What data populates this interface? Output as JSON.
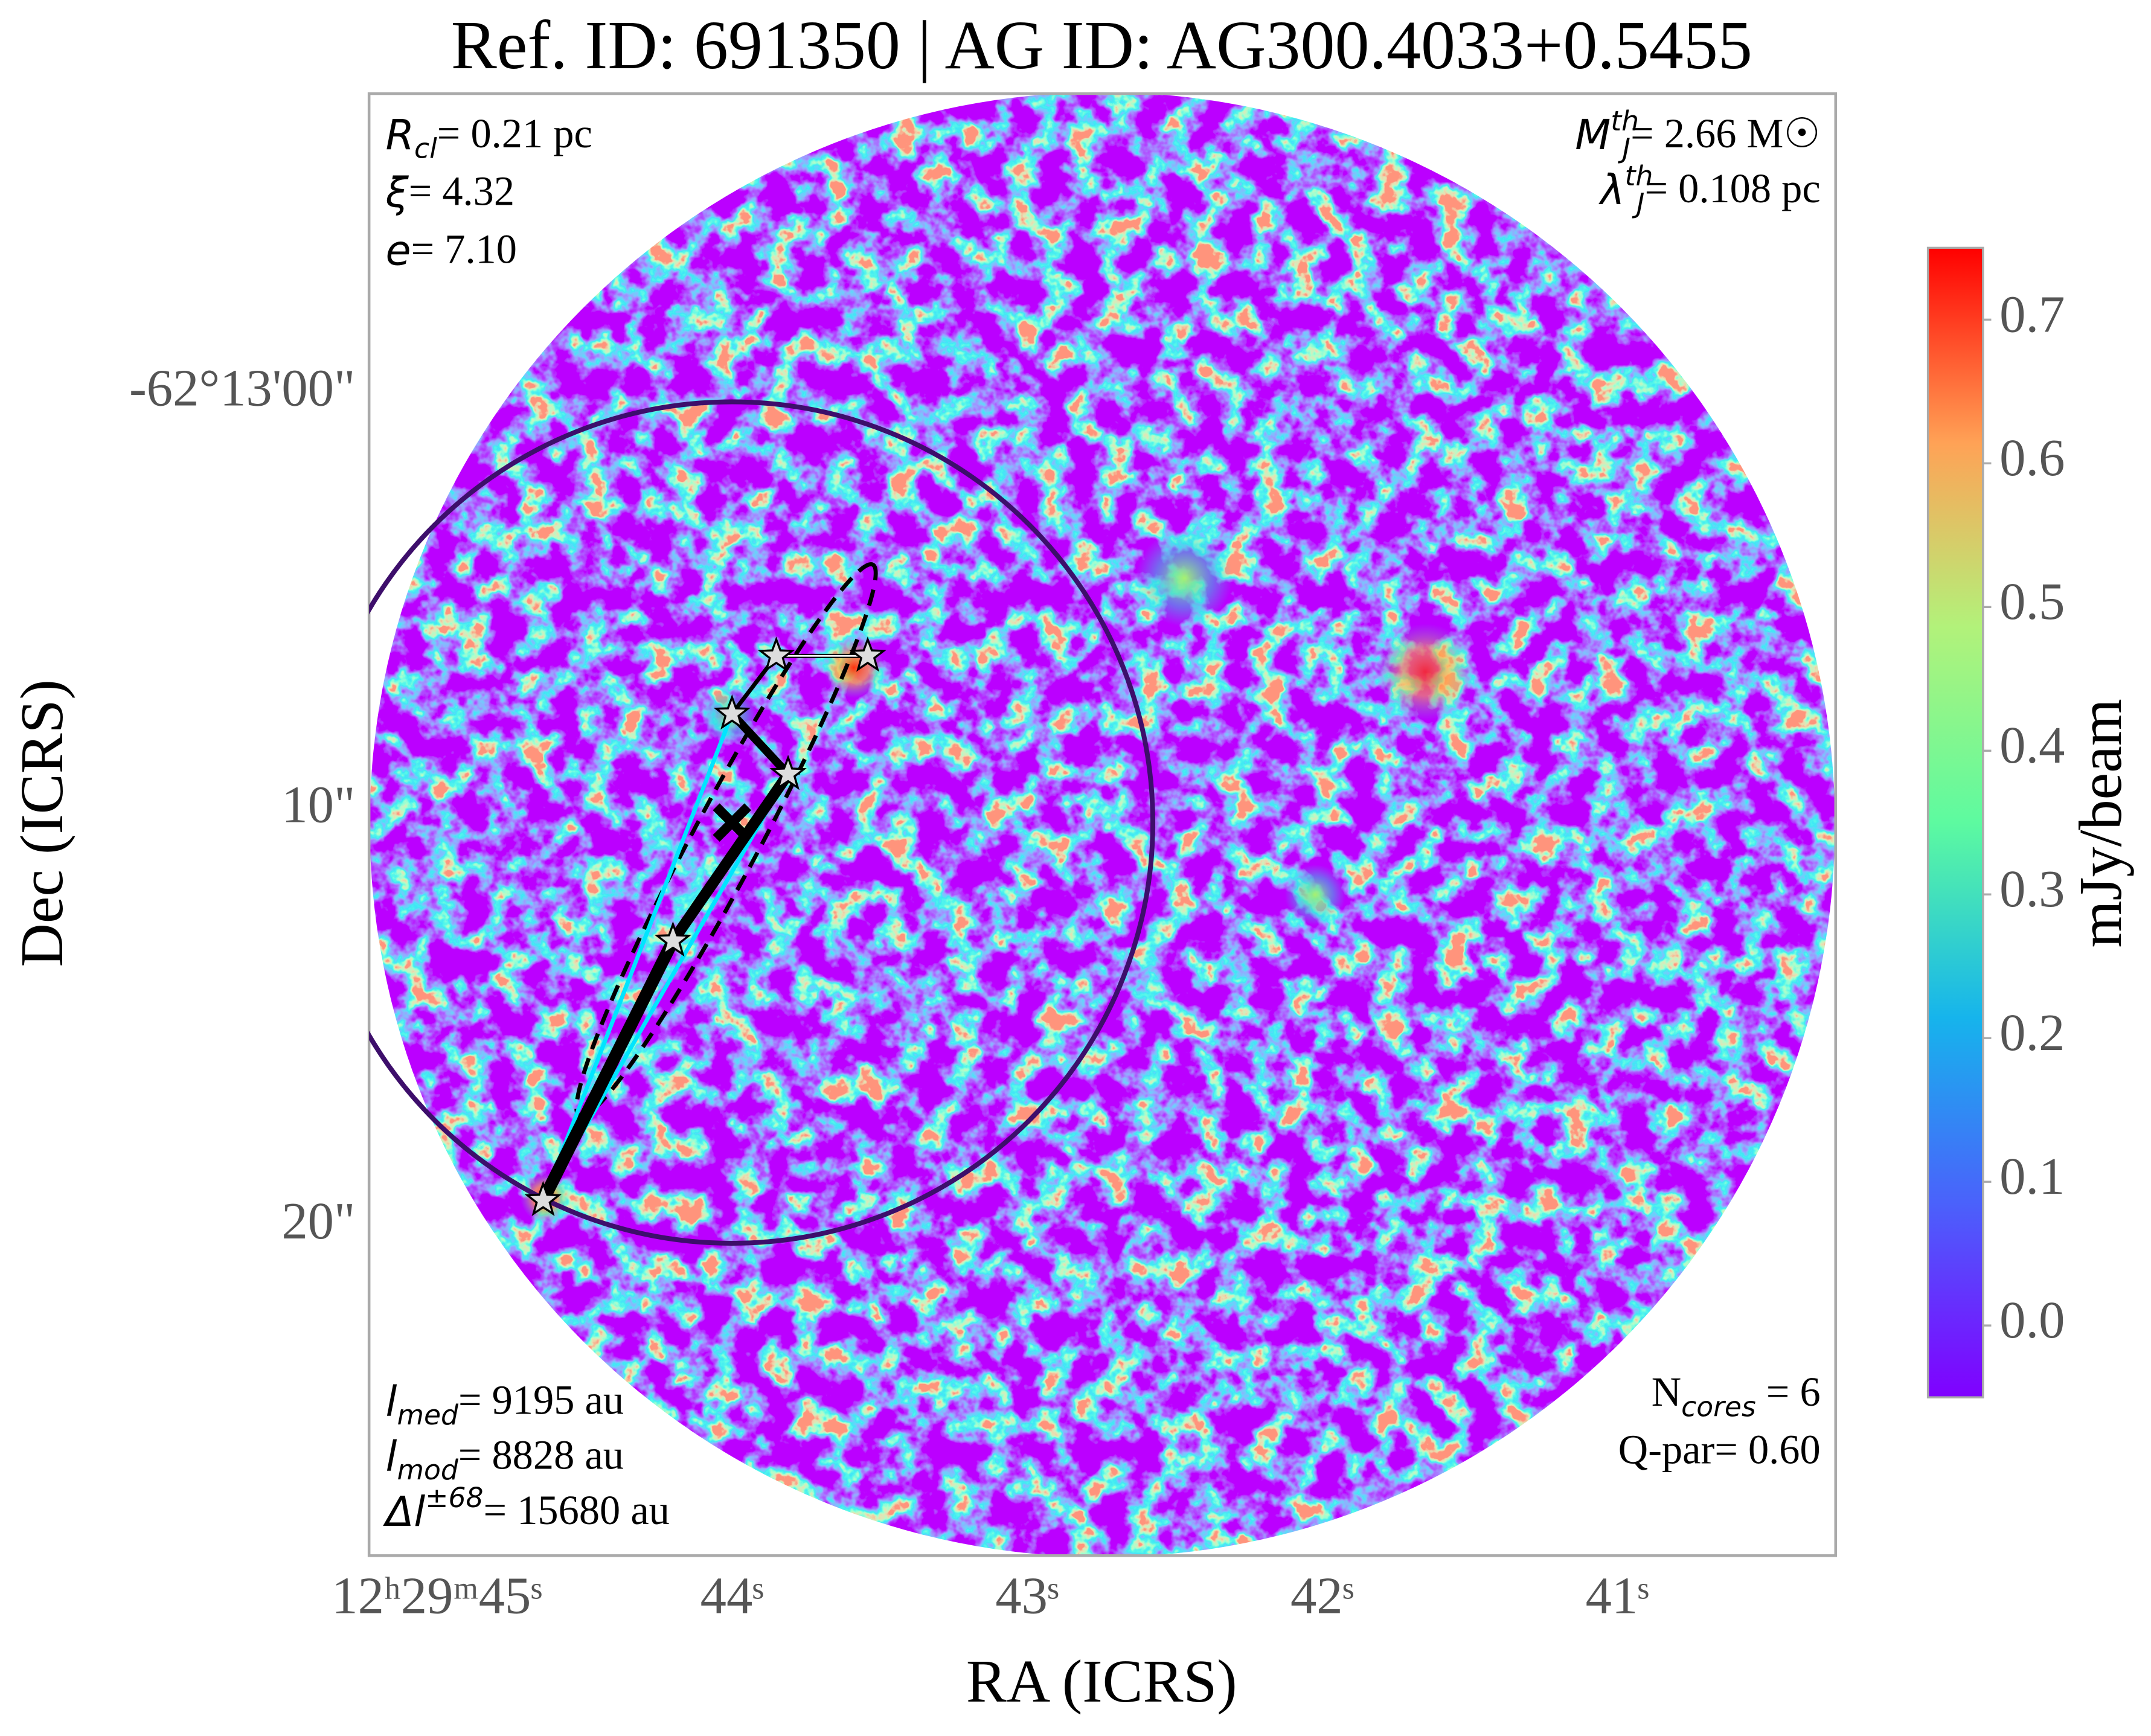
{
  "chart_data": {
    "type": "sky-map",
    "title": "Ref. ID: 691350 | AG ID: AG300.4033+0.5455",
    "x_label": "RA (ICRS)",
    "y_label": "Dec (ICRS)",
    "xlim": [
      45.23,
      40.26
    ],
    "ylim": [
      -7.2,
      27.9
    ],
    "xticks": [
      {
        "value": 45,
        "label": "12ʰ29ᵐ45ˢ"
      },
      {
        "value": 44,
        "label": "44ˢ"
      },
      {
        "value": 43,
        "label": "43ˢ"
      },
      {
        "value": 42,
        "label": "42ˢ"
      },
      {
        "value": 41,
        "label": "41ˢ"
      }
    ],
    "yticks": [
      {
        "value": 0,
        "label": "-62°13'00\""
      },
      {
        "value": 10,
        "label": "10\""
      },
      {
        "value": 20,
        "label": "20\""
      }
    ],
    "colorbar": {
      "label": "mJy/beam",
      "clim": [
        -0.05,
        0.75
      ],
      "ticks": [
        {
          "value": 0,
          "label": "0.0"
        },
        0.1,
        0.2,
        0.3,
        0.4,
        0.5,
        0.6,
        0.7
      ]
    },
    "clump_circle": {
      "ra": 44.0,
      "dec": 10.3,
      "radius": 10.1,
      "color": "#3d0e6b"
    },
    "ellipse": {
      "ra": 44.02,
      "dec": 10.73,
      "semi_axes": [
        7.5,
        0.8
      ],
      "angle": 62
    },
    "cores": {
      "ra": [
        44.64,
        44.2,
        43.81,
        44.0,
        43.85,
        43.54
      ],
      "dec": [
        19.37,
        13.14,
        9.14,
        7.69,
        6.3,
        6.3
      ]
    },
    "peak": {
      "ra": 44.0,
      "dec": 10.3
    },
    "mst_edges": [
      [
        0,
        1
      ],
      [
        1,
        2
      ],
      [
        2,
        3
      ],
      [
        3,
        4
      ],
      [
        4,
        5
      ]
    ],
    "cyan_edges": [
      [
        0,
        3
      ],
      [
        0,
        2
      ]
    ],
    "annotations": [
      {
        "position": "top-left",
        "items": [
          {
            "symbol": "R",
            "sub": "cl",
            "text": "= 0.21 pc"
          },
          {
            "symbol": "ξ",
            "text": "= 4.32"
          },
          {
            "symbol": "e",
            "text": "= 7.10"
          }
        ]
      },
      {
        "position": "top-right",
        "items": [
          {
            "symbol": "M",
            "sub": "J",
            "sup": "th",
            "text": "= 2.66 M☉"
          },
          {
            "symbol": "λ",
            "sub": "J",
            "sup": "th",
            "text": "= 0.108 pc"
          }
        ]
      },
      {
        "position": "bottom-left",
        "items": [
          {
            "symbol": "l",
            "sub": "med",
            "text": "= 9195 au"
          },
          {
            "symbol": "l",
            "sub": "mod",
            "text": "= 8828 au"
          },
          {
            "symbol": "Δl",
            "sup": "±68",
            "text": "= 15680 au"
          }
        ]
      },
      {
        "position": "bottom-right",
        "items": [
          {
            "plain": "N",
            "sub": "cores",
            "text": " = 6"
          },
          {
            "text": "Q-par= 0.60"
          }
        ]
      }
    ]
  }
}
